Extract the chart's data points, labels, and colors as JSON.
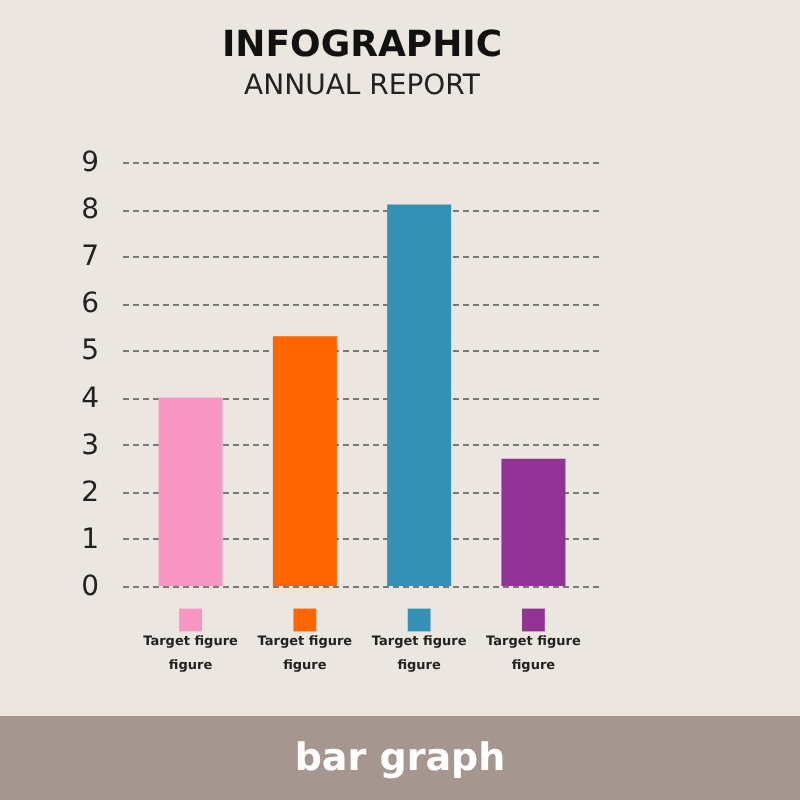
{
  "chart_data": {
    "type": "bar",
    "title": "INFOGRAPHIC",
    "subtitle": "ANNUAL REPORT",
    "categories": [
      "Target figure\nfigure",
      "Target figure\nfigure",
      "Target figure\nfigure",
      "Target figure\nfigure"
    ],
    "values": [
      4.0,
      5.3,
      8.1,
      2.7
    ],
    "colors": [
      "#f897c4",
      "#ff6600",
      "#3590b5",
      "#913294"
    ],
    "ylim": [
      0,
      9
    ],
    "yticks": [
      0,
      1,
      2,
      3,
      4,
      5,
      6,
      7,
      8,
      9
    ],
    "grid": "y",
    "legend": false,
    "annotations": [
      "bar graph"
    ]
  }
}
